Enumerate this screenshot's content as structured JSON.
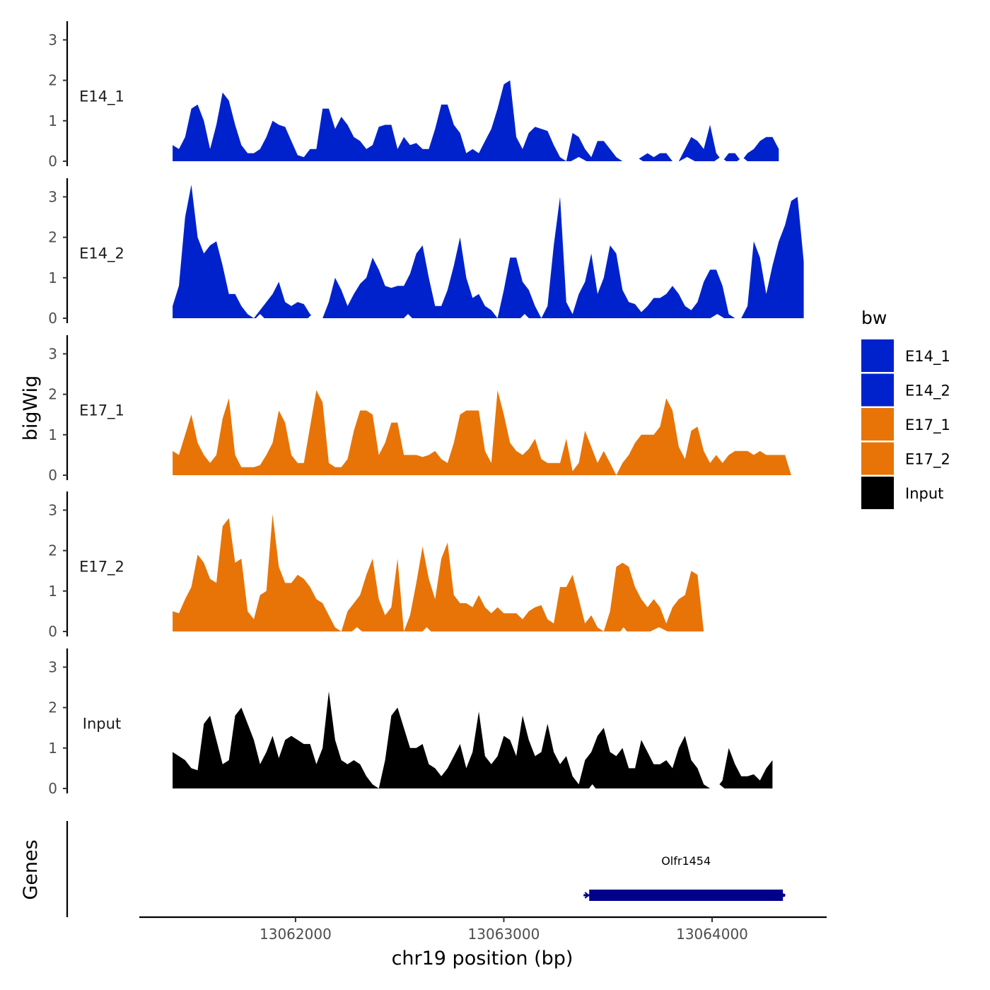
{
  "chart_data": {
    "type": "area",
    "xlabel": "chr19 position (bp)",
    "ylabel": "bigWig",
    "genes_label": "Genes",
    "xlim": [
      13061250,
      13064550
    ],
    "x_ticks": [
      13062000,
      13063000,
      13064000
    ],
    "x_tick_labels": [
      "13062000",
      "13063000",
      "13064000"
    ],
    "ylim": [
      0,
      3.4
    ],
    "y_ticks": [
      0,
      1,
      2,
      3
    ],
    "y_tick_labels": [
      "0",
      "1",
      "2",
      "3"
    ],
    "x_start": 13061410,
    "x_step": 30,
    "legend": {
      "title": "bw",
      "items": [
        {
          "label": "E14_1",
          "color": "#0022cc"
        },
        {
          "label": "E14_2",
          "color": "#0022cc"
        },
        {
          "label": "E17_1",
          "color": "#e87407"
        },
        {
          "label": "E17_2",
          "color": "#e87407"
        },
        {
          "label": "Input",
          "color": "#000000"
        }
      ]
    },
    "series": [
      {
        "name": "E14_1",
        "color": "#0022cc",
        "values": [
          0.4,
          0.3,
          0.6,
          1.3,
          1.4,
          1.0,
          0.3,
          0.9,
          1.7,
          1.5,
          0.9,
          0.4,
          0.2,
          0.2,
          0.3,
          0.6,
          1.0,
          0.9,
          0.85,
          0.5,
          0.15,
          0.1,
          0.3,
          0.3,
          1.3,
          1.3,
          0.8,
          1.1,
          0.9,
          0.6,
          0.5,
          0.3,
          0.4,
          0.85,
          0.9,
          0.9,
          0.3,
          0.6,
          0.4,
          0.45,
          0.3,
          0.3,
          0.8,
          1.4,
          1.4,
          0.9,
          0.7,
          0.2,
          0.3,
          0.2,
          0.5,
          0.8,
          1.3,
          1.9,
          2.0,
          0.6,
          0.3,
          0.7,
          0.85,
          0.8,
          0.75,
          0.4,
          0.1,
          0.0,
          0.7,
          0.6,
          0.3,
          0.1,
          0.5,
          0.5,
          0.3,
          0.1,
          0.0,
          0.0,
          0.0,
          0.1,
          0.2,
          0.1,
          0.2,
          0.2,
          0.0,
          0.0,
          0.3,
          0.6,
          0.5,
          0.3,
          0.9,
          0.2,
          0.0,
          0.2,
          0.2,
          0.0,
          0.2,
          0.3,
          0.5,
          0.6,
          0.6,
          0.3
        ],
        "gaps": [
          [
            13063330,
            13063390
          ],
          [
            13063610,
            13063660
          ],
          [
            13063850,
            13063910
          ],
          [
            13064020,
            13064060
          ],
          [
            13064130,
            13064160
          ]
        ]
      },
      {
        "name": "E14_2",
        "color": "#0022cc",
        "values": [
          0.3,
          0.8,
          2.5,
          3.3,
          2.0,
          1.6,
          1.8,
          1.9,
          1.3,
          0.6,
          0.6,
          0.3,
          0.1,
          0.0,
          0.2,
          0.4,
          0.6,
          0.9,
          0.4,
          0.3,
          0.4,
          0.35,
          0.1,
          0.0,
          0.0,
          0.4,
          1.0,
          0.7,
          0.3,
          0.6,
          0.85,
          1.0,
          1.5,
          1.2,
          0.8,
          0.75,
          0.8,
          0.8,
          1.1,
          1.6,
          1.8,
          1.0,
          0.3,
          0.3,
          0.7,
          1.3,
          2.0,
          1.0,
          0.5,
          0.6,
          0.3,
          0.2,
          0.0,
          0.7,
          1.5,
          1.5,
          0.9,
          0.7,
          0.3,
          0.0,
          0.3,
          1.8,
          3.0,
          0.4,
          0.1,
          0.6,
          0.9,
          1.6,
          0.6,
          1.0,
          1.8,
          1.6,
          0.7,
          0.4,
          0.35,
          0.15,
          0.3,
          0.5,
          0.5,
          0.6,
          0.8,
          0.6,
          0.3,
          0.2,
          0.4,
          0.9,
          1.2,
          1.2,
          0.8,
          0.1,
          0.0,
          0.0,
          0.3,
          1.9,
          1.5,
          0.6,
          1.3,
          1.9,
          2.3,
          2.9,
          3.0,
          1.4
        ],
        "gaps": [
          [
            13061820,
            13061840
          ],
          [
            13062070,
            13062090
          ],
          [
            13062530,
            13062550
          ],
          [
            13063090,
            13063110
          ],
          [
            13064000,
            13064050
          ]
        ]
      },
      {
        "name": "E17_1",
        "color": "#e87407",
        "values": [
          0.6,
          0.5,
          1.0,
          1.5,
          0.8,
          0.5,
          0.3,
          0.5,
          1.4,
          1.9,
          0.5,
          0.2,
          0.2,
          0.2,
          0.25,
          0.5,
          0.8,
          1.6,
          1.3,
          0.5,
          0.3,
          0.3,
          1.2,
          2.1,
          1.8,
          0.3,
          0.2,
          0.2,
          0.4,
          1.1,
          1.6,
          1.6,
          1.5,
          0.5,
          0.8,
          1.3,
          1.3,
          0.5,
          0.5,
          0.5,
          0.45,
          0.5,
          0.6,
          0.4,
          0.3,
          0.8,
          1.5,
          1.6,
          1.6,
          1.6,
          0.6,
          0.3,
          2.1,
          1.5,
          0.8,
          0.6,
          0.5,
          0.65,
          0.9,
          0.4,
          0.3,
          0.3,
          0.3,
          0.9,
          0.1,
          0.3,
          1.1,
          0.7,
          0.3,
          0.6,
          0.3,
          0.0,
          0.3,
          0.5,
          0.8,
          1.0,
          1.0,
          1.0,
          1.2,
          1.9,
          1.6,
          0.7,
          0.4,
          1.1,
          1.2,
          0.6,
          0.3,
          0.5,
          0.3,
          0.5,
          0.6,
          0.6,
          0.6,
          0.5,
          0.6,
          0.5,
          0.5,
          0.5,
          0.5,
          0.0
        ]
      },
      {
        "name": "E17_2",
        "color": "#e87407",
        "values": [
          0.5,
          0.45,
          0.8,
          1.1,
          1.9,
          1.7,
          1.3,
          1.2,
          2.6,
          2.8,
          1.7,
          1.8,
          0.5,
          0.3,
          0.9,
          1.0,
          2.9,
          1.6,
          1.2,
          1.2,
          1.4,
          1.3,
          1.1,
          0.8,
          0.7,
          0.4,
          0.1,
          0.0,
          0.5,
          0.7,
          0.9,
          1.4,
          1.8,
          0.8,
          0.4,
          0.6,
          1.8,
          0.0,
          0.4,
          1.2,
          2.1,
          1.3,
          0.8,
          1.8,
          2.2,
          0.9,
          0.7,
          0.7,
          0.6,
          0.9,
          0.6,
          0.45,
          0.6,
          0.45,
          0.45,
          0.45,
          0.3,
          0.5,
          0.6,
          0.65,
          0.3,
          0.2,
          1.1,
          1.1,
          1.4,
          0.8,
          0.2,
          0.4,
          0.1,
          0.0,
          0.5,
          1.6,
          1.7,
          1.6,
          1.1,
          0.8,
          0.6,
          0.8,
          0.6,
          0.2,
          0.6,
          0.8,
          0.9,
          1.5,
          1.4,
          0.0
        ],
        "gaps": [
          [
            13062280,
            13062310
          ],
          [
            13062620,
            13062640
          ],
          [
            13063570,
            13063580
          ],
          [
            13063710,
            13063780
          ]
        ]
      },
      {
        "name": "Input",
        "color": "#000000",
        "values": [
          0.9,
          0.8,
          0.7,
          0.5,
          0.45,
          1.6,
          1.8,
          1.2,
          0.6,
          0.7,
          1.8,
          2.0,
          1.6,
          1.2,
          0.6,
          0.9,
          1.3,
          0.75,
          1.2,
          1.3,
          1.2,
          1.1,
          1.1,
          0.6,
          1.0,
          2.4,
          1.2,
          0.7,
          0.6,
          0.7,
          0.6,
          0.3,
          0.1,
          0.0,
          0.7,
          1.8,
          2.0,
          1.5,
          1.0,
          1.0,
          1.1,
          0.6,
          0.5,
          0.3,
          0.5,
          0.8,
          1.1,
          0.5,
          0.9,
          1.9,
          0.8,
          0.6,
          0.8,
          1.3,
          1.2,
          0.8,
          1.8,
          1.2,
          0.8,
          0.9,
          1.6,
          0.9,
          0.6,
          0.8,
          0.3,
          0.1,
          0.7,
          0.9,
          1.3,
          1.5,
          0.9,
          0.8,
          1.0,
          0.5,
          0.5,
          1.2,
          0.9,
          0.6,
          0.6,
          0.7,
          0.5,
          1.0,
          1.3,
          0.7,
          0.5,
          0.1,
          0.0,
          0.0,
          0.2,
          1.0,
          0.6,
          0.3,
          0.3,
          0.35,
          0.2,
          0.5,
          0.7
        ],
        "gaps": [
          [
            13063420,
            13063430
          ],
          [
            13064020,
            13064050
          ]
        ]
      }
    ],
    "genes": [
      {
        "name": "Olfr1454",
        "start": 13063410,
        "end": 13064340,
        "strand": "-",
        "color": "#00008b"
      }
    ]
  }
}
